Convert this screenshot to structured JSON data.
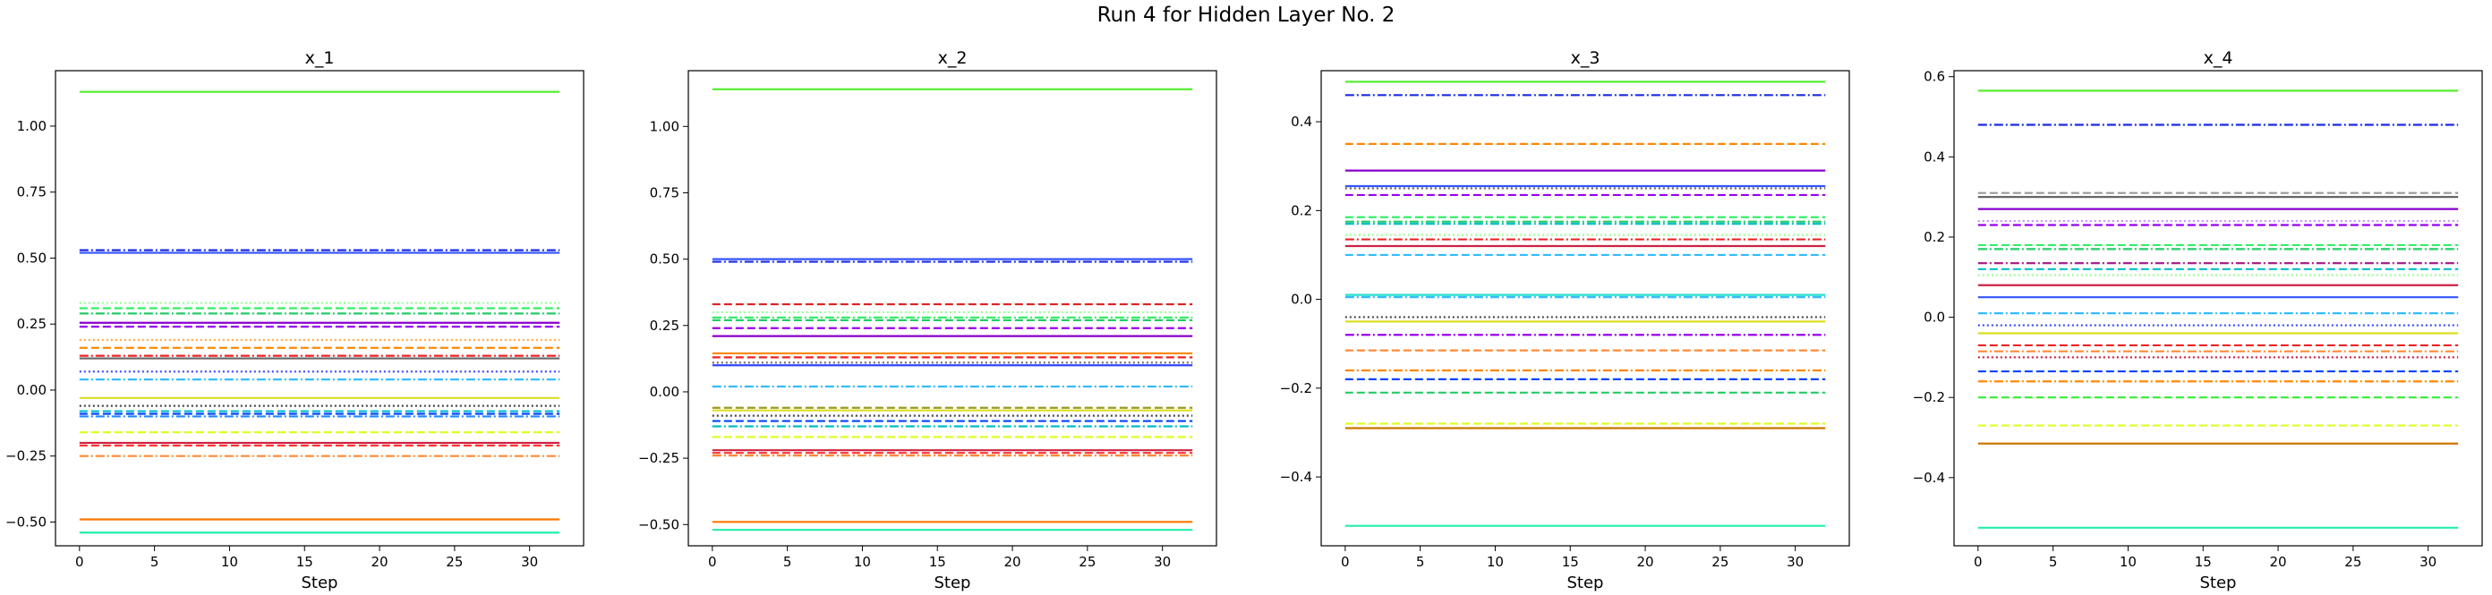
{
  "figure": {
    "suptitle": "Run 4 for Hidden Layer No. 2"
  },
  "chart_data": [
    {
      "type": "line",
      "title": "x_1",
      "xlabel": "Step",
      "ylabel": "",
      "xlim": [
        -1.6,
        33.6
      ],
      "ylim": [
        -0.59,
        1.21
      ],
      "xticks": [
        0,
        5,
        10,
        15,
        20,
        25,
        30
      ],
      "yticks": [
        -0.5,
        -0.25,
        0.0,
        0.25,
        0.5,
        0.75,
        1.0
      ],
      "ytick_labels": [
        "−0.50",
        "−0.25",
        "0.00",
        "0.25",
        "0.50",
        "0.75",
        "1.00"
      ],
      "x_range": [
        0,
        32
      ],
      "series": [
        {
          "y": 1.13,
          "color": "#55ee33",
          "dash": "solid"
        },
        {
          "y": 0.53,
          "color": "#1a2be0",
          "dash": "dashdot"
        },
        {
          "y": 0.52,
          "color": "#3355ff",
          "dash": "solid"
        },
        {
          "y": 0.33,
          "color": "#99ff99",
          "dash": "dotted"
        },
        {
          "y": 0.31,
          "color": "#33ee66",
          "dash": "dashed"
        },
        {
          "y": 0.29,
          "color": "#22cc66",
          "dash": "dashdot"
        },
        {
          "y": 0.255,
          "color": "#8800cc",
          "dash": "solid"
        },
        {
          "y": 0.24,
          "color": "#9900ee",
          "dash": "dashed"
        },
        {
          "y": 0.19,
          "color": "#ffaa44",
          "dash": "dotted"
        },
        {
          "y": 0.16,
          "color": "#ff8800",
          "dash": "dashed"
        },
        {
          "y": 0.13,
          "color": "#ee2222",
          "dash": "dashdot"
        },
        {
          "y": 0.12,
          "color": "#666666",
          "dash": "solid"
        },
        {
          "y": 0.07,
          "color": "#3344ff",
          "dash": "dotted"
        },
        {
          "y": 0.04,
          "color": "#33bbff",
          "dash": "dashdot"
        },
        {
          "y": -0.03,
          "color": "#dddd22",
          "dash": "solid"
        },
        {
          "y": -0.06,
          "color": "#444444",
          "dash": "dotted"
        },
        {
          "y": -0.08,
          "color": "#00bbcc",
          "dash": "dashed"
        },
        {
          "y": -0.09,
          "color": "#0044ff",
          "dash": "dashed"
        },
        {
          "y": -0.1,
          "color": "#2288ff",
          "dash": "dashdot"
        },
        {
          "y": -0.16,
          "color": "#ddff22",
          "dash": "dashed"
        },
        {
          "y": -0.2,
          "color": "#cc2244",
          "dash": "solid"
        },
        {
          "y": -0.21,
          "color": "#ff3333",
          "dash": "dashed"
        },
        {
          "y": -0.25,
          "color": "#ff8833",
          "dash": "dashdot"
        },
        {
          "y": -0.49,
          "color": "#ff7700",
          "dash": "solid"
        },
        {
          "y": -0.54,
          "color": "#22eeaa",
          "dash": "solid"
        }
      ]
    },
    {
      "type": "line",
      "title": "x_2",
      "xlabel": "Step",
      "ylabel": "",
      "xlim": [
        -1.6,
        33.6
      ],
      "ylim": [
        -0.58,
        1.21
      ],
      "xticks": [
        0,
        5,
        10,
        15,
        20,
        25,
        30
      ],
      "yticks": [
        -0.5,
        -0.25,
        0.0,
        0.25,
        0.5,
        0.75,
        1.0
      ],
      "ytick_labels": [
        "−0.50",
        "−0.25",
        "0.00",
        "0.25",
        "0.50",
        "0.75",
        "1.00"
      ],
      "x_range": [
        0,
        32
      ],
      "series": [
        {
          "y": 1.14,
          "color": "#55ee33",
          "dash": "solid"
        },
        {
          "y": 0.5,
          "color": "#3355ff",
          "dash": "solid"
        },
        {
          "y": 0.49,
          "color": "#1a2be0",
          "dash": "dashdot"
        },
        {
          "y": 0.33,
          "color": "#dd2222",
          "dash": "dashed"
        },
        {
          "y": 0.3,
          "color": "#99ff99",
          "dash": "dotted"
        },
        {
          "y": 0.28,
          "color": "#33ee66",
          "dash": "dashdot"
        },
        {
          "y": 0.27,
          "color": "#22cc66",
          "dash": "dashed"
        },
        {
          "y": 0.24,
          "color": "#9900ee",
          "dash": "dashed"
        },
        {
          "y": 0.21,
          "color": "#8800cc",
          "dash": "solid"
        },
        {
          "y": 0.145,
          "color": "#ff8800",
          "dash": "solid"
        },
        {
          "y": 0.13,
          "color": "#ee2222",
          "dash": "dashed"
        },
        {
          "y": 0.11,
          "color": "#666666",
          "dash": "dotted"
        },
        {
          "y": 0.1,
          "color": "#3344ff",
          "dash": "solid"
        },
        {
          "y": 0.02,
          "color": "#33bbff",
          "dash": "dashdot"
        },
        {
          "y": -0.06,
          "color": "#999922",
          "dash": "dashed"
        },
        {
          "y": -0.07,
          "color": "#dddd22",
          "dash": "solid"
        },
        {
          "y": -0.09,
          "color": "#444444",
          "dash": "dotted"
        },
        {
          "y": -0.11,
          "color": "#0044ff",
          "dash": "dashed"
        },
        {
          "y": -0.13,
          "color": "#00bbcc",
          "dash": "dashdot"
        },
        {
          "y": -0.17,
          "color": "#ddff22",
          "dash": "dashed"
        },
        {
          "y": -0.22,
          "color": "#cc2244",
          "dash": "solid"
        },
        {
          "y": -0.23,
          "color": "#ff3333",
          "dash": "dashed"
        },
        {
          "y": -0.24,
          "color": "#ff8833",
          "dash": "dashdot"
        },
        {
          "y": -0.49,
          "color": "#ff7700",
          "dash": "solid"
        },
        {
          "y": -0.52,
          "color": "#22eeaa",
          "dash": "solid"
        }
      ]
    },
    {
      "type": "line",
      "title": "x_3",
      "xlabel": "Step",
      "ylabel": "",
      "xlim": [
        -1.6,
        33.6
      ],
      "ylim": [
        -0.555,
        0.515
      ],
      "xticks": [
        0,
        5,
        10,
        15,
        20,
        25,
        30
      ],
      "yticks": [
        -0.4,
        -0.2,
        0.0,
        0.2,
        0.4
      ],
      "ytick_labels": [
        "−0.4",
        "−0.2",
        "0.0",
        "0.2",
        "0.4"
      ],
      "x_range": [
        0,
        32
      ],
      "series": [
        {
          "y": 0.49,
          "color": "#55ee33",
          "dash": "solid"
        },
        {
          "y": 0.46,
          "color": "#1a2be0",
          "dash": "dashdot"
        },
        {
          "y": 0.35,
          "color": "#ff8800",
          "dash": "dashed"
        },
        {
          "y": 0.29,
          "color": "#8800cc",
          "dash": "solid"
        },
        {
          "y": 0.255,
          "color": "#3355ff",
          "dash": "solid"
        },
        {
          "y": 0.25,
          "color": "#666666",
          "dash": "dotted"
        },
        {
          "y": 0.235,
          "color": "#9900ee",
          "dash": "dashed"
        },
        {
          "y": 0.185,
          "color": "#33ee66",
          "dash": "dashed"
        },
        {
          "y": 0.175,
          "color": "#22cc66",
          "dash": "dashdot"
        },
        {
          "y": 0.17,
          "color": "#00bbcc",
          "dash": "dashdot"
        },
        {
          "y": 0.145,
          "color": "#99ff99",
          "dash": "dotted"
        },
        {
          "y": 0.135,
          "color": "#ee2222",
          "dash": "dashdot"
        },
        {
          "y": 0.12,
          "color": "#cc2244",
          "dash": "solid"
        },
        {
          "y": 0.1,
          "color": "#33bbff",
          "dash": "dashed"
        },
        {
          "y": 0.01,
          "color": "#22ddcc",
          "dash": "solid"
        },
        {
          "y": 0.005,
          "color": "#33bbff",
          "dash": "dashdot"
        },
        {
          "y": -0.04,
          "color": "#444444",
          "dash": "dotted"
        },
        {
          "y": -0.05,
          "color": "#dddd22",
          "dash": "solid"
        },
        {
          "y": -0.08,
          "color": "#9900ee",
          "dash": "dashdot"
        },
        {
          "y": -0.115,
          "color": "#ff8833",
          "dash": "dashed"
        },
        {
          "y": -0.16,
          "color": "#ff8800",
          "dash": "dashdot"
        },
        {
          "y": -0.18,
          "color": "#0044ff",
          "dash": "dashed"
        },
        {
          "y": -0.21,
          "color": "#22cc66",
          "dash": "dashed"
        },
        {
          "y": -0.28,
          "color": "#ddff22",
          "dash": "dashed"
        },
        {
          "y": -0.29,
          "color": "#cc7700",
          "dash": "solid"
        },
        {
          "y": -0.51,
          "color": "#22eeaa",
          "dash": "solid"
        }
      ]
    },
    {
      "type": "line",
      "title": "x_4",
      "xlabel": "Step",
      "ylabel": "",
      "xlim": [
        -1.6,
        33.6
      ],
      "ylim": [
        -0.57,
        0.615
      ],
      "xticks": [
        0,
        5,
        10,
        15,
        20,
        25,
        30
      ],
      "yticks": [
        -0.4,
        -0.2,
        0.0,
        0.2,
        0.4,
        0.6
      ],
      "ytick_labels": [
        "−0.4",
        "−0.2",
        "0.0",
        "0.2",
        "0.4",
        "0.6"
      ],
      "x_range": [
        0,
        32
      ],
      "series": [
        {
          "y": 0.565,
          "color": "#55ee33",
          "dash": "solid"
        },
        {
          "y": 0.48,
          "color": "#1a2be0",
          "dash": "dashdot"
        },
        {
          "y": 0.31,
          "color": "#999999",
          "dash": "dashed"
        },
        {
          "y": 0.3,
          "color": "#666666",
          "dash": "solid"
        },
        {
          "y": 0.27,
          "color": "#8800cc",
          "dash": "solid"
        },
        {
          "y": 0.24,
          "color": "#cc88ff",
          "dash": "dotted"
        },
        {
          "y": 0.23,
          "color": "#9900ee",
          "dash": "dashed"
        },
        {
          "y": 0.18,
          "color": "#33ee66",
          "dash": "dashed"
        },
        {
          "y": 0.17,
          "color": "#22cc66",
          "dash": "dashdot"
        },
        {
          "y": 0.135,
          "color": "#aa2288",
          "dash": "dashdot"
        },
        {
          "y": 0.12,
          "color": "#00bbcc",
          "dash": "dashed"
        },
        {
          "y": 0.105,
          "color": "#99ff99",
          "dash": "dotted"
        },
        {
          "y": 0.08,
          "color": "#cc2244",
          "dash": "solid"
        },
        {
          "y": 0.05,
          "color": "#3355ff",
          "dash": "solid"
        },
        {
          "y": 0.01,
          "color": "#33bbff",
          "dash": "dashdot"
        },
        {
          "y": -0.02,
          "color": "#3344ff",
          "dash": "dotted"
        },
        {
          "y": -0.04,
          "color": "#dddd22",
          "dash": "solid"
        },
        {
          "y": -0.07,
          "color": "#ee2222",
          "dash": "dashed"
        },
        {
          "y": -0.085,
          "color": "#ff8833",
          "dash": "dashdot"
        },
        {
          "y": -0.1,
          "color": "#cc2244",
          "dash": "dotted"
        },
        {
          "y": -0.135,
          "color": "#0044ff",
          "dash": "dashed"
        },
        {
          "y": -0.16,
          "color": "#ff8800",
          "dash": "dashdot"
        },
        {
          "y": -0.2,
          "color": "#33ee33",
          "dash": "dashed"
        },
        {
          "y": -0.27,
          "color": "#ddff22",
          "dash": "dashed"
        },
        {
          "y": -0.315,
          "color": "#cc7700",
          "dash": "solid"
        },
        {
          "y": -0.525,
          "color": "#22eeaa",
          "dash": "solid"
        }
      ]
    }
  ]
}
